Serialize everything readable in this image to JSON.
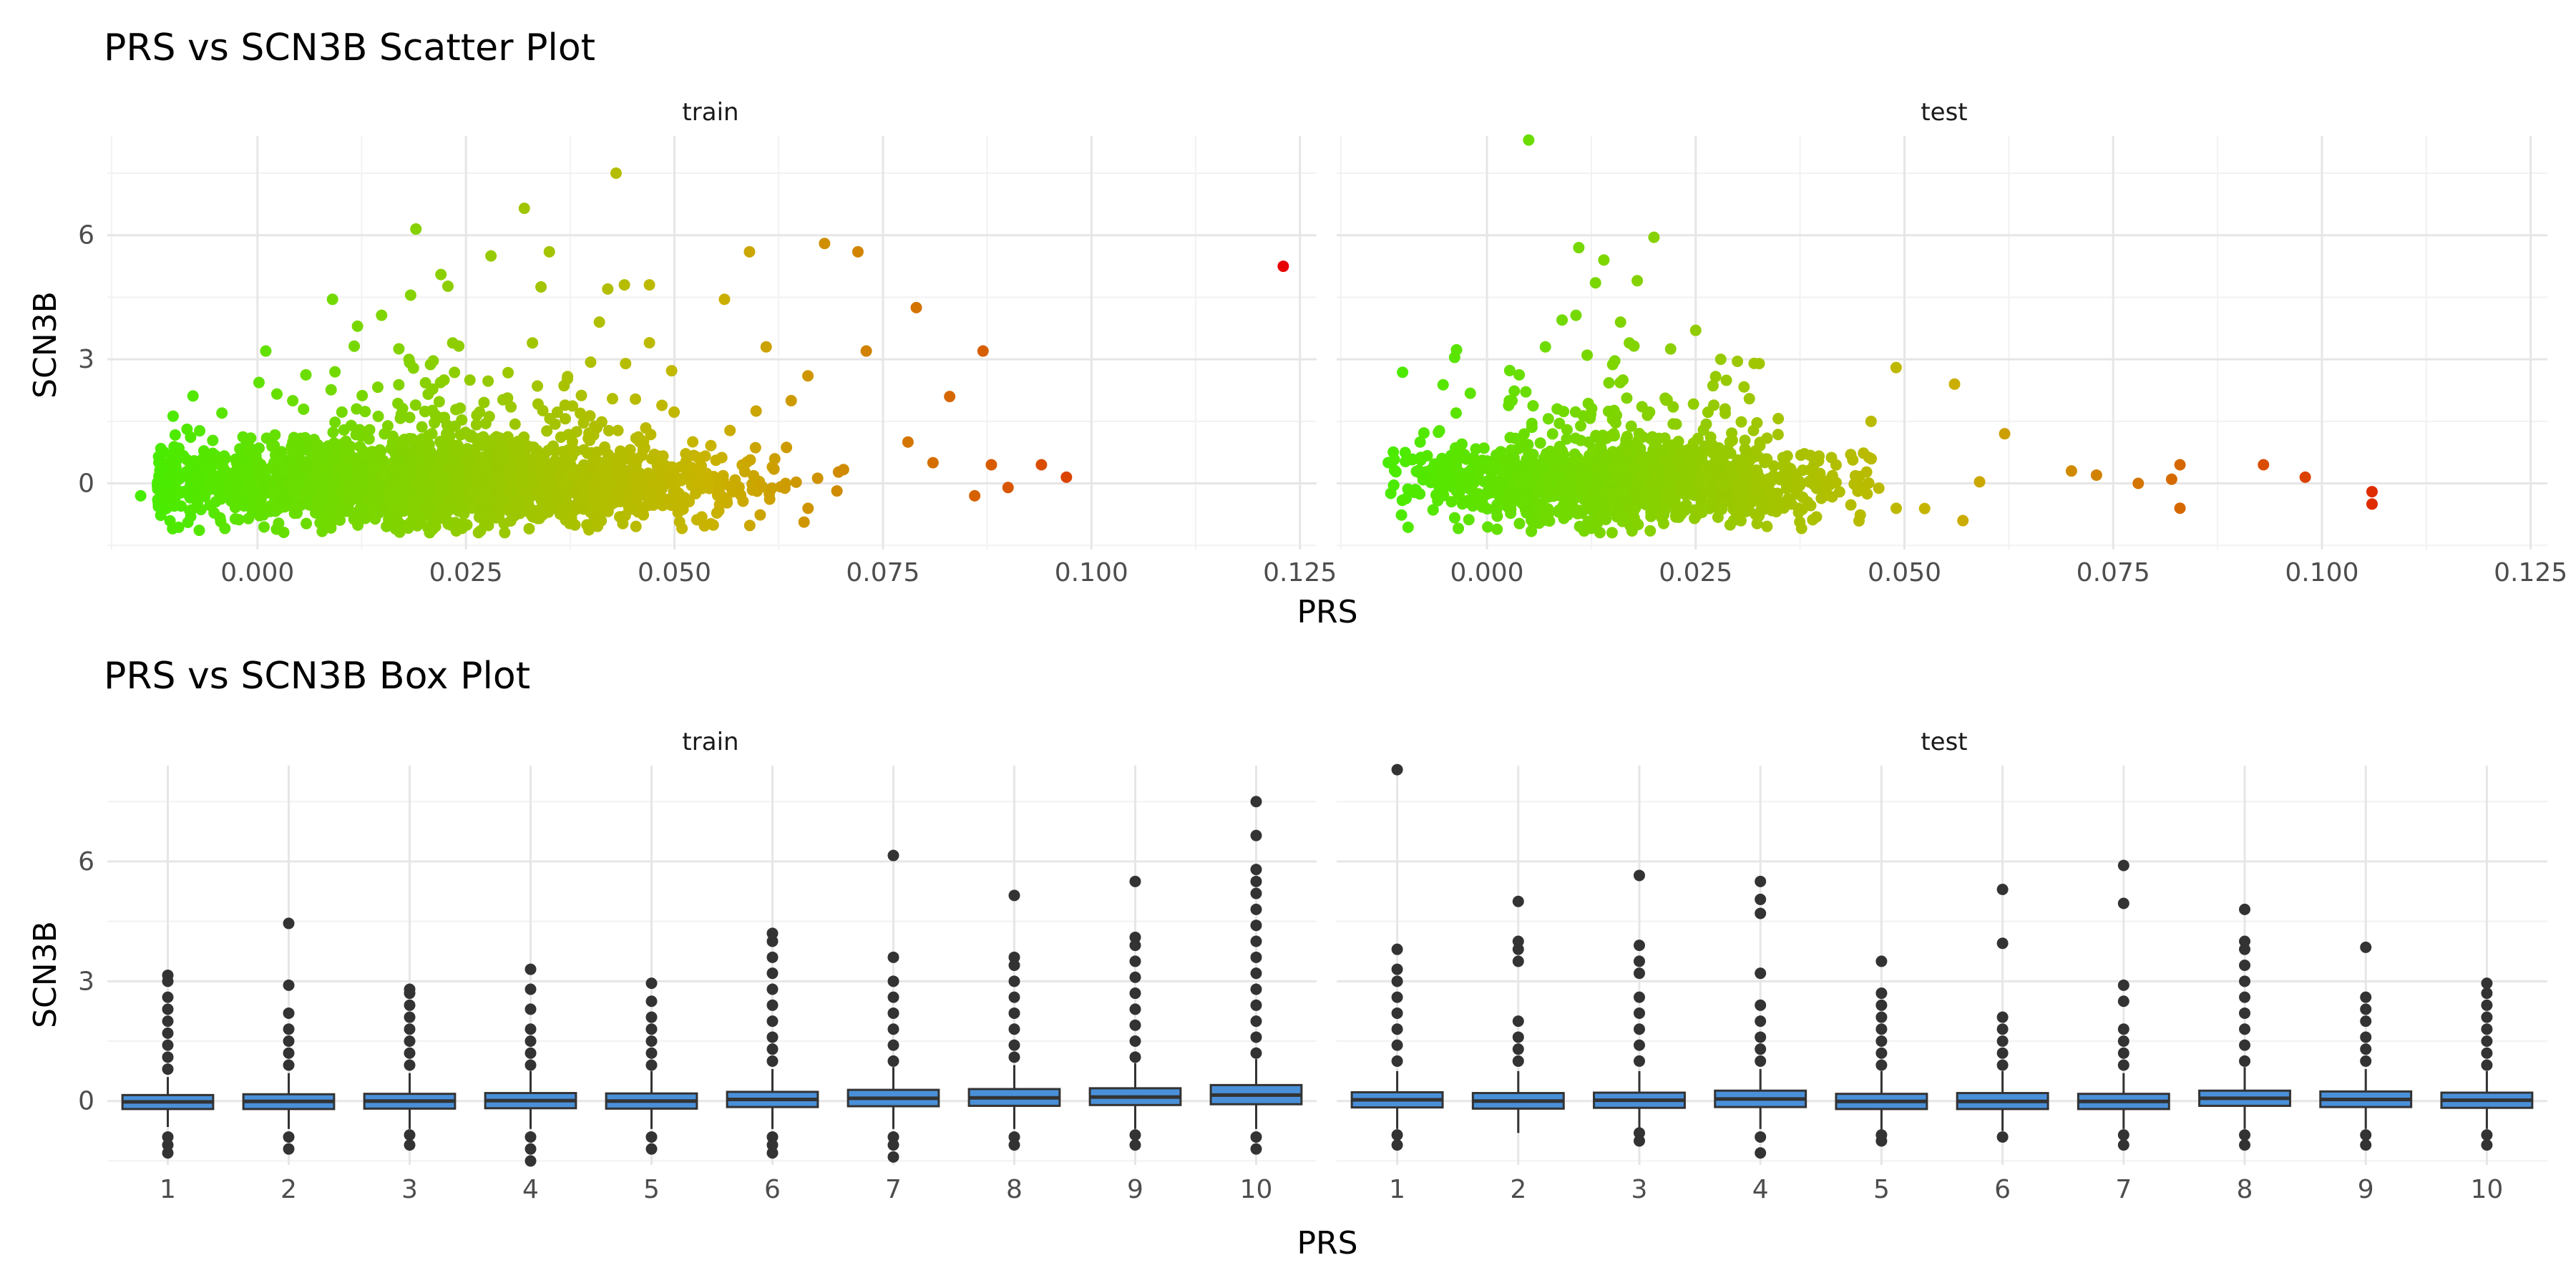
{
  "chart_data": [
    {
      "type": "scatter",
      "title": "PRS vs SCN3B Scatter Plot",
      "xlabel": "PRS",
      "ylabel": "SCN3B",
      "facets": [
        "train",
        "test"
      ],
      "xlim": [
        -0.018,
        0.127
      ],
      "ylim": [
        -1.6,
        8.4
      ],
      "x_ticks": [
        0.0,
        0.025,
        0.05,
        0.075,
        0.1,
        0.125
      ],
      "x_tick_labels": [
        "0.000",
        "0.025",
        "0.050",
        "0.075",
        "0.100",
        "0.125"
      ],
      "y_ticks": [
        0,
        3,
        6
      ],
      "y_tick_labels": [
        "0",
        "3",
        "6"
      ],
      "color_scale": {
        "low": "#44ee00",
        "mid": "#c9b400",
        "high": "#e60000",
        "domain": [
          -0.015,
          0.123
        ]
      },
      "grid": true,
      "legend": "none",
      "series": [
        {
          "facet": "train",
          "points": [
            {
              "x": 0.123,
              "y": 5.25
            },
            {
              "x": 0.097,
              "y": 0.15
            },
            {
              "x": 0.094,
              "y": 0.45
            },
            {
              "x": 0.09,
              "y": -0.1
            },
            {
              "x": 0.088,
              "y": 0.45
            },
            {
              "x": 0.087,
              "y": 3.2
            },
            {
              "x": 0.086,
              "y": -0.3
            },
            {
              "x": 0.083,
              "y": 2.1
            },
            {
              "x": 0.081,
              "y": 0.5
            },
            {
              "x": 0.079,
              "y": 4.25
            },
            {
              "x": 0.078,
              "y": 1.0
            },
            {
              "x": 0.073,
              "y": 3.2
            },
            {
              "x": 0.072,
              "y": 5.6
            },
            {
              "x": 0.068,
              "y": 5.8
            },
            {
              "x": 0.066,
              "y": 2.6
            },
            {
              "x": 0.064,
              "y": 2.0
            },
            {
              "x": 0.061,
              "y": 3.3
            },
            {
              "x": 0.059,
              "y": 5.6
            },
            {
              "x": 0.056,
              "y": 4.45
            },
            {
              "x": 0.047,
              "y": 4.8
            },
            {
              "x": 0.047,
              "y": 3.4
            },
            {
              "x": 0.044,
              "y": 4.8
            },
            {
              "x": 0.043,
              "y": 7.5
            },
            {
              "x": 0.042,
              "y": 4.7
            },
            {
              "x": 0.041,
              "y": 3.9
            },
            {
              "x": 0.035,
              "y": 5.6
            },
            {
              "x": 0.034,
              "y": 4.75
            },
            {
              "x": 0.032,
              "y": 6.65
            },
            {
              "x": 0.028,
              "y": 5.5
            },
            {
              "x": 0.022,
              "y": 5.05
            },
            {
              "x": 0.019,
              "y": 6.15
            },
            {
              "x": 0.012,
              "y": 3.8
            },
            {
              "x": 0.009,
              "y": 4.45
            },
            {
              "x": 0.001,
              "y": 3.2
            },
            {
              "x": -0.006,
              "y": 0.7
            },
            {
              "x": -0.008,
              "y": -0.8
            },
            {
              "x": -0.011,
              "y": -0.3
            },
            {
              "x": -0.014,
              "y": -0.3
            },
            {
              "x": -0.012,
              "y": -0.05
            },
            {
              "x": -0.009,
              "y": -0.2
            }
          ]
        },
        {
          "facet": "test",
          "points": [
            {
              "x": 0.106,
              "y": -0.2
            },
            {
              "x": 0.106,
              "y": -0.5
            },
            {
              "x": 0.098,
              "y": 0.15
            },
            {
              "x": 0.093,
              "y": 0.45
            },
            {
              "x": 0.083,
              "y": 0.45
            },
            {
              "x": 0.083,
              "y": -0.6
            },
            {
              "x": 0.082,
              "y": 0.1
            },
            {
              "x": 0.078,
              "y": 0.0
            },
            {
              "x": 0.073,
              "y": 0.2
            },
            {
              "x": 0.07,
              "y": 0.3
            },
            {
              "x": 0.062,
              "y": 1.2
            },
            {
              "x": 0.056,
              "y": 2.4
            },
            {
              "x": 0.057,
              "y": -0.9
            },
            {
              "x": 0.049,
              "y": 2.8
            },
            {
              "x": 0.046,
              "y": 1.5
            },
            {
              "x": 0.032,
              "y": 2.9
            },
            {
              "x": 0.03,
              "y": 2.95
            },
            {
              "x": 0.028,
              "y": 3.0
            },
            {
              "x": 0.025,
              "y": 3.7
            },
            {
              "x": 0.022,
              "y": 3.25
            },
            {
              "x": 0.02,
              "y": 5.95
            },
            {
              "x": 0.018,
              "y": 4.9
            },
            {
              "x": 0.016,
              "y": 3.9
            },
            {
              "x": 0.014,
              "y": 5.4
            },
            {
              "x": 0.013,
              "y": 4.85
            },
            {
              "x": 0.012,
              "y": 3.1
            },
            {
              "x": 0.011,
              "y": 5.7
            },
            {
              "x": 0.009,
              "y": 3.95
            },
            {
              "x": 0.007,
              "y": 3.3
            },
            {
              "x": 0.005,
              "y": 8.3
            },
            {
              "x": 0.003,
              "y": 2.0
            },
            {
              "x": -0.003,
              "y": 0.95
            },
            {
              "x": -0.008,
              "y": 1.0
            },
            {
              "x": -0.008,
              "y": 0.25
            },
            {
              "x": -0.005,
              "y": 0.2
            }
          ]
        }
      ]
    },
    {
      "type": "box",
      "title": "PRS vs SCN3B Box Plot",
      "xlabel": "PRS",
      "ylabel": "SCN3B",
      "facets": [
        "train",
        "test"
      ],
      "categories": [
        "1",
        "2",
        "3",
        "4",
        "5",
        "6",
        "7",
        "8",
        "9",
        "10"
      ],
      "ylim": [
        -1.6,
        8.4
      ],
      "y_ticks": [
        0,
        3,
        6
      ],
      "y_tick_labels": [
        "0",
        "3",
        "6"
      ],
      "box_color": "#4a90d9",
      "grid": true,
      "series": [
        {
          "facet": "train",
          "boxes": [
            {
              "q1": -0.2,
              "median": -0.02,
              "q3": 0.15,
              "whisker_low": -0.65,
              "whisker_high": 0.6,
              "outliers": [
                0.8,
                1.1,
                1.4,
                1.7,
                2.0,
                2.3,
                2.6,
                3.0,
                3.15,
                -0.9,
                -1.1,
                -1.3
              ]
            },
            {
              "q1": -0.2,
              "median": -0.01,
              "q3": 0.17,
              "whisker_low": -0.7,
              "whisker_high": 0.7,
              "outliers": [
                0.9,
                1.2,
                1.5,
                1.8,
                2.2,
                2.9,
                4.45,
                -0.9,
                -1.2
              ]
            },
            {
              "q1": -0.19,
              "median": 0.0,
              "q3": 0.18,
              "whisker_low": -0.7,
              "whisker_high": 0.7,
              "outliers": [
                0.9,
                1.2,
                1.5,
                1.8,
                2.1,
                2.4,
                2.7,
                2.8,
                -0.85,
                -1.1
              ]
            },
            {
              "q1": -0.18,
              "median": 0.01,
              "q3": 0.2,
              "whisker_low": -0.7,
              "whisker_high": 0.75,
              "outliers": [
                0.9,
                1.2,
                1.5,
                1.8,
                2.3,
                2.8,
                3.3,
                -0.9,
                -1.2,
                -1.5
              ]
            },
            {
              "q1": -0.19,
              "median": 0.0,
              "q3": 0.19,
              "whisker_low": -0.7,
              "whisker_high": 0.75,
              "outliers": [
                0.9,
                1.2,
                1.5,
                1.8,
                2.1,
                2.5,
                2.95,
                -0.9,
                -1.2
              ]
            },
            {
              "q1": -0.15,
              "median": 0.04,
              "q3": 0.23,
              "whisker_low": -0.7,
              "whisker_high": 0.8,
              "outliers": [
                1.0,
                1.3,
                1.6,
                2.0,
                2.4,
                2.8,
                3.2,
                3.6,
                4.0,
                4.2,
                -0.9,
                -1.1,
                -1.3
              ]
            },
            {
              "q1": -0.13,
              "median": 0.07,
              "q3": 0.28,
              "whisker_low": -0.7,
              "whisker_high": 0.85,
              "outliers": [
                1.0,
                1.4,
                1.8,
                2.2,
                2.6,
                3.0,
                3.6,
                6.15,
                -0.9,
                -1.1,
                -1.4
              ]
            },
            {
              "q1": -0.12,
              "median": 0.08,
              "q3": 0.3,
              "whisker_low": -0.7,
              "whisker_high": 0.9,
              "outliers": [
                1.1,
                1.4,
                1.8,
                2.2,
                2.6,
                3.0,
                3.4,
                3.6,
                5.15,
                -0.9,
                -1.1
              ]
            },
            {
              "q1": -0.1,
              "median": 0.1,
              "q3": 0.32,
              "whisker_low": -0.7,
              "whisker_high": 0.95,
              "outliers": [
                1.1,
                1.5,
                1.9,
                2.3,
                2.7,
                3.1,
                3.5,
                3.9,
                4.1,
                5.5,
                -0.85,
                -1.1
              ]
            },
            {
              "q1": -0.08,
              "median": 0.15,
              "q3": 0.4,
              "whisker_low": -0.7,
              "whisker_high": 1.05,
              "outliers": [
                1.2,
                1.6,
                2.0,
                2.4,
                2.8,
                3.2,
                3.6,
                4.0,
                4.4,
                4.8,
                5.2,
                5.5,
                5.8,
                6.65,
                7.5,
                -0.9,
                -1.2
              ]
            }
          ]
        },
        {
          "facet": "test",
          "boxes": [
            {
              "q1": -0.16,
              "median": 0.03,
              "q3": 0.22,
              "whisker_low": -0.7,
              "whisker_high": 0.75,
              "outliers": [
                1.0,
                1.4,
                1.8,
                2.2,
                2.6,
                3.0,
                3.3,
                3.8,
                8.3,
                -0.85,
                -1.1
              ]
            },
            {
              "q1": -0.19,
              "median": 0.0,
              "q3": 0.2,
              "whisker_low": -0.8,
              "whisker_high": 0.75,
              "outliers": [
                1.0,
                1.3,
                1.6,
                2.0,
                3.5,
                3.8,
                4.0,
                5.0
              ]
            },
            {
              "q1": -0.17,
              "median": 0.02,
              "q3": 0.21,
              "whisker_low": -0.7,
              "whisker_high": 0.75,
              "outliers": [
                1.0,
                1.4,
                1.8,
                2.2,
                2.6,
                3.2,
                3.5,
                3.9,
                5.65,
                -0.8,
                -1.0
              ]
            },
            {
              "q1": -0.15,
              "median": 0.05,
              "q3": 0.26,
              "whisker_low": -0.7,
              "whisker_high": 0.8,
              "outliers": [
                1.0,
                1.3,
                1.6,
                2.0,
                2.4,
                3.2,
                4.7,
                5.05,
                5.5,
                -0.9,
                -1.3
              ]
            },
            {
              "q1": -0.2,
              "median": -0.01,
              "q3": 0.18,
              "whisker_low": -0.75,
              "whisker_high": 0.75,
              "outliers": [
                0.9,
                1.2,
                1.5,
                1.8,
                2.1,
                2.4,
                2.7,
                3.5,
                -0.85,
                -1.0
              ]
            },
            {
              "q1": -0.2,
              "median": -0.01,
              "q3": 0.2,
              "whisker_low": -0.75,
              "whisker_high": 0.75,
              "outliers": [
                0.9,
                1.2,
                1.5,
                1.8,
                2.1,
                3.95,
                5.3,
                -0.9
              ]
            },
            {
              "q1": -0.2,
              "median": -0.01,
              "q3": 0.18,
              "whisker_low": -0.7,
              "whisker_high": 0.7,
              "outliers": [
                0.9,
                1.2,
                1.5,
                1.8,
                2.5,
                2.9,
                4.95,
                5.9,
                -0.85,
                -1.1
              ]
            },
            {
              "q1": -0.12,
              "median": 0.07,
              "q3": 0.26,
              "whisker_low": -0.7,
              "whisker_high": 0.85,
              "outliers": [
                1.0,
                1.4,
                1.8,
                2.2,
                2.6,
                3.0,
                3.4,
                3.8,
                4.0,
                4.8,
                -0.85,
                -1.1
              ]
            },
            {
              "q1": -0.15,
              "median": 0.04,
              "q3": 0.24,
              "whisker_low": -0.7,
              "whisker_high": 0.8,
              "outliers": [
                1.0,
                1.3,
                1.6,
                2.0,
                2.3,
                2.6,
                3.85,
                -0.85,
                -1.1
              ]
            },
            {
              "q1": -0.17,
              "median": 0.02,
              "q3": 0.21,
              "whisker_low": -0.7,
              "whisker_high": 0.75,
              "outliers": [
                0.9,
                1.2,
                1.5,
                1.8,
                2.1,
                2.4,
                2.7,
                2.95,
                -0.85,
                -1.1
              ]
            }
          ]
        }
      ]
    }
  ]
}
